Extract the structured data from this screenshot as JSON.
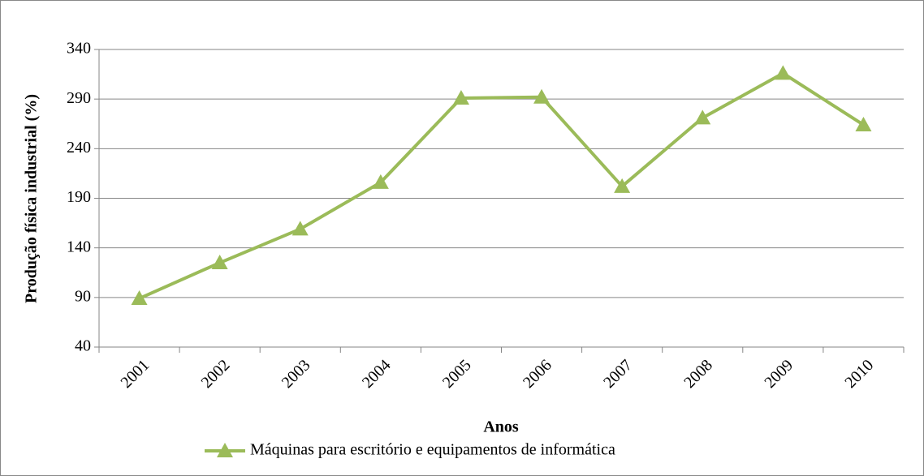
{
  "chart_data": {
    "type": "line",
    "x_label": "Anos",
    "y_label": "Produção física industrial (%)",
    "categories": [
      "2001",
      "2002",
      "2003",
      "2004",
      "2005",
      "2006",
      "2007",
      "2008",
      "2009",
      "2010"
    ],
    "series": [
      {
        "name": "Máquinas para escritório e equipamentos de informática",
        "color": "#9bbb59",
        "values": [
          89,
          125,
          159,
          206,
          291,
          292,
          202,
          271,
          316,
          264
        ]
      }
    ],
    "ylim": [
      40,
      340
    ],
    "yticks": [
      40,
      90,
      140,
      190,
      240,
      290,
      340
    ],
    "grid": true
  }
}
